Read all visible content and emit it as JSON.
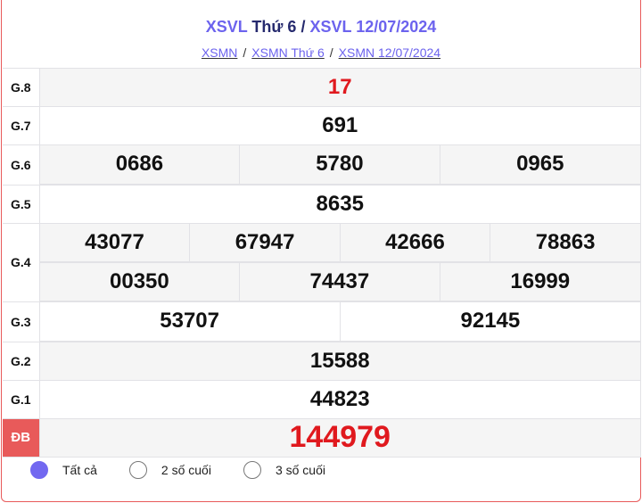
{
  "header": {
    "title_part1": "XSVL",
    "title_part2": "Thứ 6",
    "title_sep": "/",
    "title_part3": "XSVL 12/07/2024"
  },
  "breadcrumb": [
    "XSMN",
    "XSMN Thứ 6",
    "XSMN 12/07/2024"
  ],
  "breadcrumb_sep": "/",
  "prizes": [
    {
      "label": "G.8",
      "numbers": [
        "17"
      ]
    },
    {
      "label": "G.7",
      "numbers": [
        "691"
      ]
    },
    {
      "label": "G.6",
      "numbers": [
        "0686",
        "5780",
        "0965"
      ]
    },
    {
      "label": "G.5",
      "numbers": [
        "8635"
      ]
    },
    {
      "label": "G.4",
      "numbers": [
        "43077",
        "67947",
        "42666",
        "78863",
        "00350",
        "74437",
        "16999"
      ]
    },
    {
      "label": "G.3",
      "numbers": [
        "53707",
        "92145"
      ]
    },
    {
      "label": "G.2",
      "numbers": [
        "15588"
      ]
    },
    {
      "label": "G.1",
      "numbers": [
        "44823"
      ]
    },
    {
      "label": "ĐB",
      "numbers": [
        "144979"
      ]
    }
  ],
  "filters": {
    "options": [
      "Tất cả",
      "2 số cuối",
      "3 số cuối"
    ],
    "selected": "Tất cả"
  },
  "colors": {
    "accent": "#6c63ee",
    "special": "#e85a5a",
    "red_number": "#e0191e"
  }
}
